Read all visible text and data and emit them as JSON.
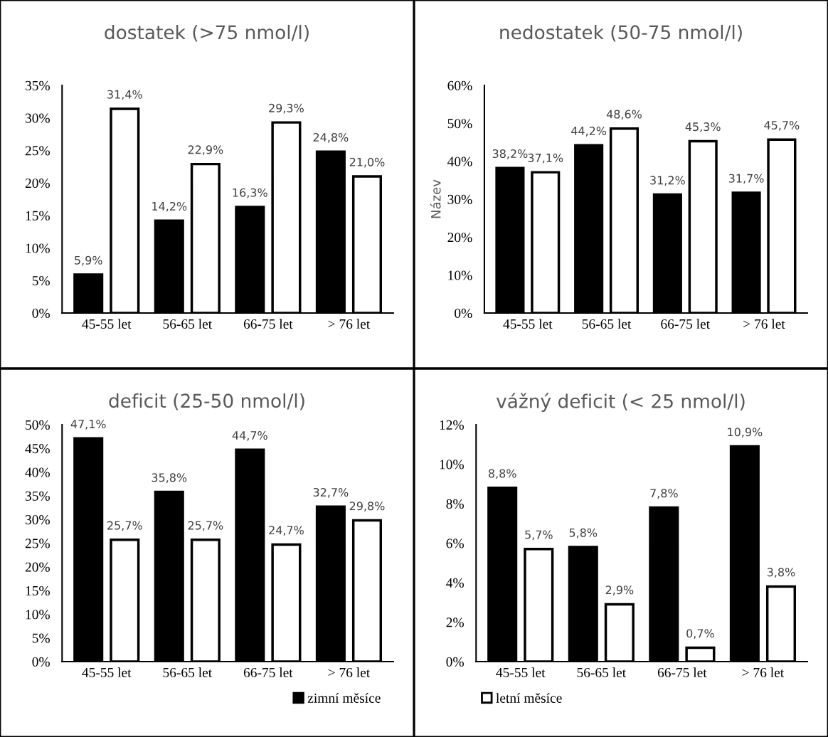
{
  "chart_data": [
    {
      "type": "bar",
      "title": "dostatek (>75 nmol/l)",
      "categories": [
        "45-55 let",
        "56-65 let",
        "66-75 let",
        "> 76 let"
      ],
      "ylim": [
        0,
        35
      ],
      "yticks": [
        {
          "value": 0,
          "label": "0%"
        },
        {
          "value": 5,
          "label": "5%"
        },
        {
          "value": 10,
          "label": "10%"
        },
        {
          "value": 15,
          "label": "15%"
        },
        {
          "value": 20,
          "label": "20%"
        },
        {
          "value": 25,
          "label": "25%"
        },
        {
          "value": 30,
          "label": "30%"
        },
        {
          "value": 35,
          "label": "35%"
        }
      ],
      "grid": false,
      "legend": false,
      "series": [
        {
          "color": "#000000",
          "values": [
            5.9,
            14.2,
            16.3,
            24.8
          ],
          "value_labels": [
            "5,9%",
            "14,2%",
            "16,3%",
            "24,8%"
          ]
        },
        {
          "color": "#ffffff",
          "values": [
            31.4,
            22.9,
            29.3,
            21.0
          ],
          "value_labels": [
            "31,4%",
            "22,9%",
            "29,3%",
            "21,0%"
          ]
        }
      ]
    },
    {
      "type": "bar",
      "title": "nedostatek (50-75 nmol/l)",
      "ylabel": "Název",
      "categories": [
        "45-55 let",
        "56-65 let",
        "66-75 let",
        "> 76 let"
      ],
      "ylim": [
        0,
        60
      ],
      "yticks": [
        {
          "value": 0,
          "label": "0%"
        },
        {
          "value": 10,
          "label": "10%"
        },
        {
          "value": 20,
          "label": "20%"
        },
        {
          "value": 30,
          "label": "30%"
        },
        {
          "value": 40,
          "label": "40%"
        },
        {
          "value": 50,
          "label": "50%"
        },
        {
          "value": 60,
          "label": "60%"
        }
      ],
      "grid": false,
      "legend": false,
      "series": [
        {
          "color": "#000000",
          "values": [
            38.2,
            44.2,
            31.2,
            31.7
          ],
          "value_labels": [
            "38,2%",
            "44,2%",
            "31,2%",
            "31,7%"
          ]
        },
        {
          "color": "#ffffff",
          "values": [
            37.1,
            48.6,
            45.3,
            45.7
          ],
          "value_labels": [
            "37,1%",
            "48,6%",
            "45,3%",
            "45,7%"
          ]
        }
      ]
    },
    {
      "type": "bar",
      "title": "deficit (25-50 nmol/l)",
      "categories": [
        "45-55 let",
        "56-65 let",
        "66-75 let",
        "> 76 let"
      ],
      "ylim": [
        0,
        50
      ],
      "yticks": [
        {
          "value": 0,
          "label": "0%"
        },
        {
          "value": 5,
          "label": "5%"
        },
        {
          "value": 10,
          "label": "10%"
        },
        {
          "value": 15,
          "label": "15%"
        },
        {
          "value": 20,
          "label": "20%"
        },
        {
          "value": 25,
          "label": "25%"
        },
        {
          "value": 30,
          "label": "30%"
        },
        {
          "value": 35,
          "label": "35%"
        },
        {
          "value": 40,
          "label": "40%"
        },
        {
          "value": 45,
          "label": "45%"
        },
        {
          "value": 50,
          "label": "50%"
        }
      ],
      "grid": false,
      "legend": "bottom right",
      "series": [
        {
          "name": "zimní měsíce",
          "color": "#000000",
          "values": [
            47.1,
            35.8,
            44.7,
            32.7
          ],
          "value_labels": [
            "47,1%",
            "35,8%",
            "44,7%",
            "32,7%"
          ]
        },
        {
          "color": "#ffffff",
          "values": [
            25.7,
            25.7,
            24.7,
            29.8
          ],
          "value_labels": [
            "25,7%",
            "25,7%",
            "24,7%",
            "29,8%"
          ]
        }
      ]
    },
    {
      "type": "bar",
      "title": "vážný deficit (< 25 nmol/l)",
      "categories": [
        "45-55 let",
        "56-65 let",
        "66-75 let",
        "> 76 let"
      ],
      "ylim": [
        0,
        12
      ],
      "yticks": [
        {
          "value": 0,
          "label": "0%"
        },
        {
          "value": 2,
          "label": "2%"
        },
        {
          "value": 4,
          "label": "4%"
        },
        {
          "value": 6,
          "label": "6%"
        },
        {
          "value": 8,
          "label": "8%"
        },
        {
          "value": 10,
          "label": "10%"
        },
        {
          "value": 12,
          "label": "12%"
        }
      ],
      "grid": false,
      "legend": "bottom left",
      "series": [
        {
          "color": "#000000",
          "values": [
            8.8,
            5.8,
            7.8,
            10.9
          ],
          "value_labels": [
            "8,8%",
            "5,8%",
            "7,8%",
            "10,9%"
          ]
        },
        {
          "name": "letní měsíce",
          "color": "#ffffff",
          "values": [
            5.7,
            2.9,
            0.7,
            3.8
          ],
          "value_labels": [
            "5,7%",
            "2,9%",
            "0,7%",
            "3,8%"
          ]
        }
      ]
    }
  ]
}
